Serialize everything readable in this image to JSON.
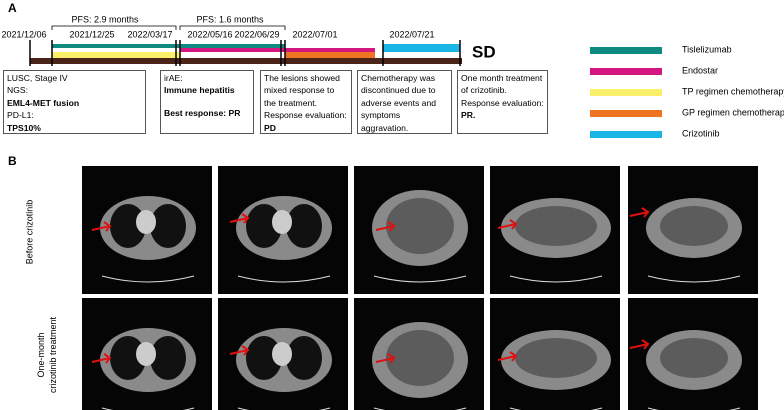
{
  "panel_a": {
    "label": "A",
    "pfs": [
      "PFS: 2.9 months",
      "PFS: 1.6 months"
    ],
    "dates": [
      "2021/12/06",
      "2021/12/25",
      "2022/03/17",
      "2022/05/16",
      "2022/06/29",
      "2022/07/01",
      "2022/07/21"
    ],
    "outcome": "SD",
    "boxes": [
      [
        {
          "text": "LUSC, Stage IV"
        },
        {
          "text": "NGS:"
        },
        {
          "text": "EML4-MET fusion",
          "bold": true
        },
        {
          "text": "PD-L1:"
        },
        {
          "text": "TPS10%",
          "bold": true
        }
      ],
      [
        {
          "text": "irAE:"
        },
        {
          "text": "Immune hepatitis",
          "bold": true
        },
        {
          "text": "Best response: PR",
          "bold": true
        }
      ],
      [
        {
          "text": "The lesions showed"
        },
        {
          "text": "mixed response to"
        },
        {
          "text": "the treatment."
        },
        {
          "text": "Response evaluation:"
        },
        {
          "text": "PD",
          "bold": true
        }
      ],
      [
        {
          "text": "Chemotherapy was"
        },
        {
          "text": "discontinued due to"
        },
        {
          "text": "adverse events and"
        },
        {
          "text": "symptoms"
        },
        {
          "text": "aggravation."
        }
      ],
      [
        {
          "text": "One month treatment"
        },
        {
          "text": "of crizotinib."
        },
        {
          "text": "Response evaluation:"
        },
        {
          "text": "PR.",
          "bold": true
        }
      ]
    ],
    "legend": [
      {
        "name": "Tislelizumab",
        "color": "#0f8a80"
      },
      {
        "name": "Endostar",
        "color": "#d4177f"
      },
      {
        "name": "TP regimen chemotherapy",
        "color": "#fbf06a"
      },
      {
        "name": "GP regimen chemotherapy",
        "color": "#ee7424"
      },
      {
        "name": "Crizotinib",
        "color": "#19b6e6"
      }
    ]
  },
  "panel_b": {
    "label": "B",
    "rows": [
      "Before crizotinib",
      "One-month crizotinib treatment"
    ]
  }
}
